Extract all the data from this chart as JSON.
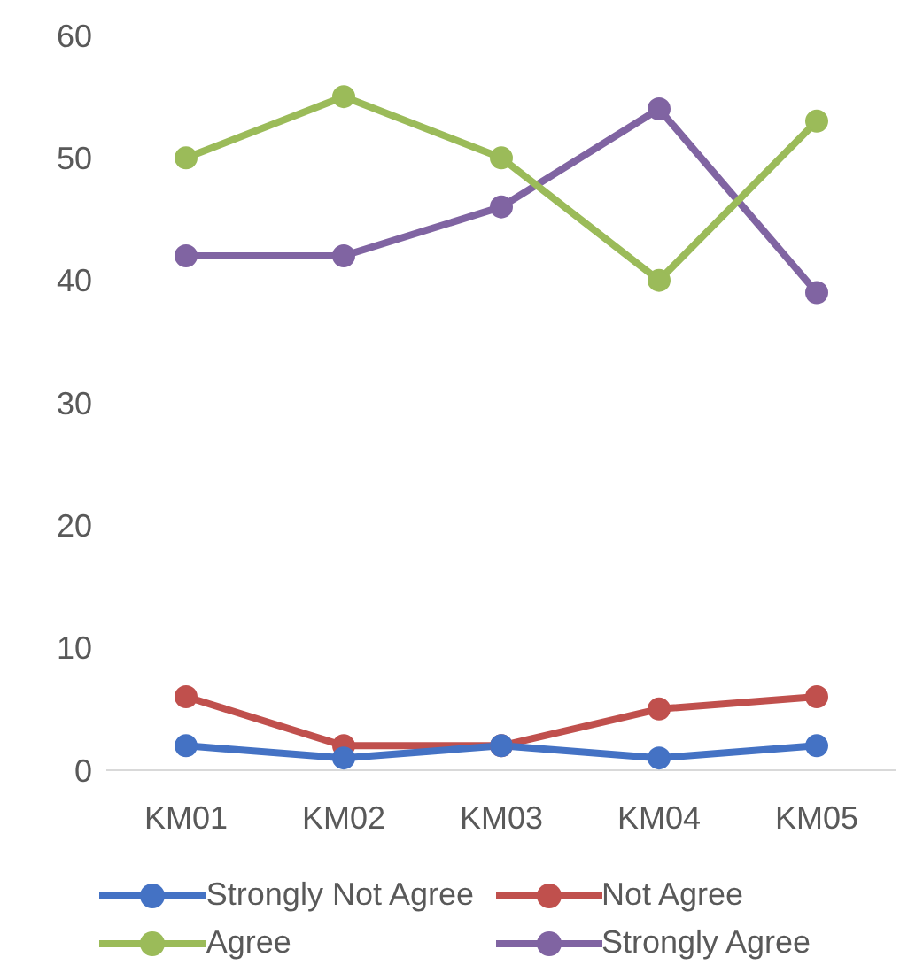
{
  "chart_data": {
    "type": "line",
    "categories": [
      "KM01",
      "KM02",
      "KM03",
      "KM04",
      "KM05"
    ],
    "series": [
      {
        "name": "Strongly Not Agree",
        "color": "#4472c4",
        "values": [
          2,
          1,
          2,
          1,
          2
        ]
      },
      {
        "name": "Not Agree",
        "color": "#c0504d",
        "values": [
          6,
          2,
          2,
          5,
          6
        ]
      },
      {
        "name": "Agree",
        "color": "#9bbb59",
        "values": [
          50,
          55,
          50,
          40,
          53
        ]
      },
      {
        "name": "Strongly Agree",
        "color": "#8064a2",
        "values": [
          42,
          42,
          46,
          54,
          39
        ]
      }
    ],
    "ylim": [
      0,
      60
    ],
    "yticks": [
      0,
      10,
      20,
      30,
      40,
      50,
      60
    ],
    "grid": false,
    "legend": "bottom",
    "marker": "circle",
    "line_style": "solid"
  }
}
